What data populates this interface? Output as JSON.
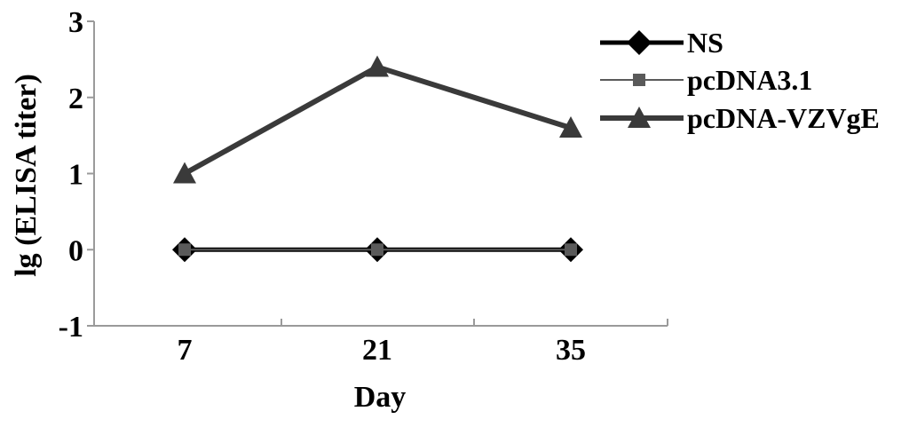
{
  "chart_data": {
    "type": "line",
    "title": "",
    "xlabel": "Day",
    "ylabel": "lg (ELISA titer)",
    "categories": [
      "7",
      "21",
      "35"
    ],
    "ylim": [
      -1,
      3
    ],
    "yticks": [
      "3",
      "2",
      "1",
      "0",
      "-1"
    ],
    "grid": false,
    "legend_position": "top-right",
    "series": [
      {
        "name": "NS",
        "values": [
          0,
          0,
          0
        ],
        "marker": "diamond",
        "color": "#000000"
      },
      {
        "name": "pcDNA3.1",
        "values": [
          0,
          0,
          0
        ],
        "marker": "square",
        "color": "#5a5a5a"
      },
      {
        "name": "pcDNA-VZVgE",
        "values": [
          1,
          2.4,
          1.6
        ],
        "marker": "triangle",
        "color": "#3a3a3a"
      }
    ]
  }
}
